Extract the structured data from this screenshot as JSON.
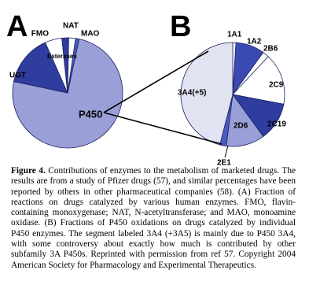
{
  "chart_data": [
    {
      "type": "pie",
      "panel": "A",
      "categories": [
        "P450",
        "UGT",
        "Esterases",
        "FMO",
        "NAT",
        "MAO"
      ],
      "values": [
        75,
        15,
        5,
        2,
        2,
        1
      ],
      "colors": [
        "#9a9fd8",
        "#2e3d9e",
        "#ffffff",
        "#2e3d9e",
        "#ffffff",
        "#4a5bc4"
      ]
    },
    {
      "type": "pie",
      "panel": "B",
      "categories": [
        "1A1",
        "1A2",
        "2B6",
        "2C9",
        "2C19",
        "2D6",
        "2E1",
        "3A4(+5)"
      ],
      "values": [
        1,
        9,
        2,
        16,
        12,
        12,
        2,
        46
      ],
      "colors": [
        "#ffffff",
        "#3a4ab2",
        "#ffffff",
        "#ffffff",
        "#2e3d9e",
        "#9a9fd8",
        "#4a5bc4",
        "#e2e3f2"
      ]
    }
  ],
  "caption": {
    "label": "Figure 4.",
    "text": "Contributions of enzymes to the metabolism of marketed drugs. The results are from a study of Pfizer drugs (57), and similar percentages have been reported by others in other pharmaceutical companies (58). (A) Fraction of reactions on drugs catalyzed by various human enzymes. FMO, flavin-containing monoxygenase; NAT, N-acetyltransferase; and MAO, monoamine oxidase. (B) Fractions of P450 oxidations on drugs catalyzed by individual P450 enzymes. The segment labeled 3A4 (+3A5) is mainly due to P450 3A4, with some controversy about exactly how much is contributed by other subfamily 3A P450s. Reprinted with permission from ref 57. Copyright 2004 American Society for Pharmacology and Experimental Therapeutics."
  }
}
